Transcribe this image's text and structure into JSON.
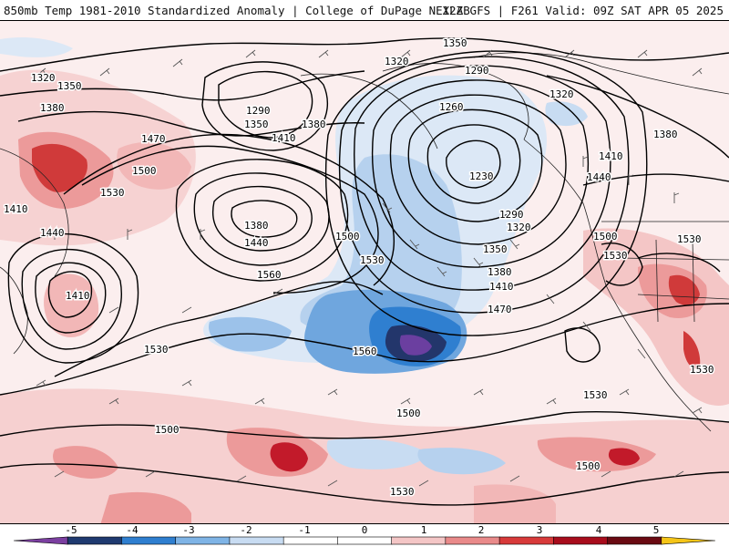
{
  "header": {
    "left_title": "850mb Temp 1981-2010 Standardized Anomaly | College of DuPage NEXLAB",
    "right_title": "12Z GFS | F261 Valid: 09Z SAT APR 05 2025"
  },
  "map": {
    "contour_labels": [
      "1320",
      "1350",
      "1380",
      "1470",
      "1500",
      "1530",
      "1410",
      "1440",
      "1410",
      "1290",
      "1350",
      "1380",
      "1410",
      "1380",
      "1440",
      "1500",
      "1530",
      "1560",
      "1530",
      "1350",
      "1320",
      "1290",
      "1260",
      "1230",
      "1290",
      "1320",
      "1350",
      "1380",
      "1410",
      "1470",
      "1560",
      "1320",
      "1380",
      "1410",
      "1440",
      "1500",
      "1530",
      "1530",
      "1530",
      "1500",
      "1530",
      "1500",
      "1500",
      "1530"
    ]
  },
  "colorbar": {
    "tick_labels": [
      "-5",
      "-4",
      "-3",
      "-2",
      "-1",
      "0",
      "1",
      "2",
      "3",
      "4",
      "5"
    ],
    "colors": [
      "#7b3fa0",
      "#1f3a70",
      "#2f7fd0",
      "#7fb4e6",
      "#c8dcf2",
      "#ffffff",
      "#ffffff",
      "#f4c6c6",
      "#e98a8a",
      "#d83a3a",
      "#a80c1c",
      "#6a0a12",
      "#f5c518"
    ]
  }
}
